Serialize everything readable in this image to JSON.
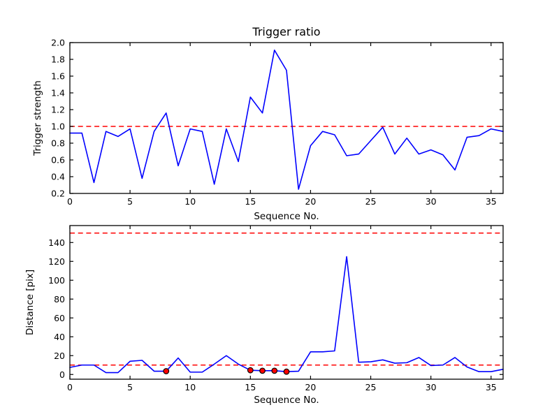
{
  "figure": {
    "background": "#ffffff",
    "frame_color": "#000000"
  },
  "chart_data": [
    {
      "type": "line",
      "title": "Trigger ratio",
      "xlabel": "Sequence No.",
      "ylabel": "Trigger strength",
      "grid": false,
      "legend": null,
      "xlim": [
        0,
        36
      ],
      "ylim": [
        0.2,
        2.0
      ],
      "xticks": [
        0,
        5,
        10,
        15,
        20,
        25,
        30,
        35
      ],
      "xtick_labels": [
        "0",
        "5",
        "10",
        "15",
        "20",
        "25",
        "30",
        "35"
      ],
      "yticks": [
        0.2,
        0.4,
        0.6,
        0.8,
        1.0,
        1.2,
        1.4,
        1.6,
        1.8,
        2.0
      ],
      "ytick_labels": [
        "0.2",
        "0.4",
        "0.6",
        "0.8",
        "1.0",
        "1.2",
        "1.4",
        "1.6",
        "1.8",
        "2.0"
      ],
      "x": [
        0,
        1,
        2,
        3,
        4,
        5,
        6,
        7,
        8,
        9,
        10,
        11,
        12,
        13,
        14,
        15,
        16,
        17,
        18,
        19,
        20,
        21,
        22,
        23,
        24,
        25,
        26,
        27,
        28,
        29,
        30,
        31,
        32,
        33,
        34,
        35,
        36
      ],
      "series": [
        {
          "name": "trigger_strength",
          "color": "#0000ff",
          "values": [
            0.92,
            0.92,
            0.33,
            0.94,
            0.88,
            0.97,
            0.38,
            0.94,
            1.16,
            0.53,
            0.97,
            0.94,
            0.31,
            0.97,
            0.58,
            1.35,
            1.16,
            1.91,
            1.67,
            0.25,
            0.77,
            0.94,
            0.9,
            0.65,
            0.67,
            0.83,
            0.99,
            0.67,
            0.86,
            0.67,
            0.72,
            0.66,
            0.48,
            0.87,
            0.89,
            0.97,
            0.94
          ]
        }
      ],
      "thresholds": [
        {
          "value": 1.0,
          "color": "#ff0000",
          "style": "dashed"
        }
      ]
    },
    {
      "type": "line",
      "title": "",
      "xlabel": "Sequence No.",
      "ylabel": "Distance [pix]",
      "grid": false,
      "legend": null,
      "xlim": [
        0,
        36
      ],
      "ylim": [
        -5,
        158
      ],
      "xticks": [
        0,
        5,
        10,
        15,
        20,
        25,
        30,
        35
      ],
      "xtick_labels": [
        "0",
        "5",
        "10",
        "15",
        "20",
        "25",
        "30",
        "35"
      ],
      "yticks": [
        0,
        20,
        40,
        60,
        80,
        100,
        120,
        140
      ],
      "ytick_labels": [
        "0",
        "20",
        "40",
        "60",
        "80",
        "100",
        "120",
        "140"
      ],
      "x": [
        0,
        1,
        2,
        3,
        4,
        5,
        6,
        7,
        8,
        9,
        10,
        11,
        12,
        13,
        14,
        15,
        16,
        17,
        18,
        19,
        20,
        21,
        22,
        23,
        24,
        25,
        26,
        27,
        28,
        29,
        30,
        31,
        32,
        33,
        34,
        35,
        36
      ],
      "series": [
        {
          "name": "distance",
          "color": "#0000ff",
          "values": [
            7.5,
            10,
            10,
            2,
            2,
            14,
            15,
            3.5,
            3.5,
            17.5,
            2.5,
            2.5,
            11,
            20,
            11,
            4.5,
            4,
            4,
            3,
            3.5,
            24,
            24,
            25,
            125,
            13,
            13.5,
            15.5,
            12,
            12.5,
            18,
            9.5,
            10,
            18,
            8,
            3,
            3,
            5.5
          ]
        }
      ],
      "markers": {
        "shape": "circle",
        "color": "#ff0000",
        "edge": "#000000",
        "x": [
          8,
          15,
          16,
          17,
          18
        ],
        "values": [
          3.5,
          4.5,
          4,
          4,
          3
        ]
      },
      "thresholds": [
        {
          "value": 150,
          "color": "#ff0000",
          "style": "dashed"
        },
        {
          "value": 10,
          "color": "#ff0000",
          "style": "dashed"
        }
      ]
    }
  ]
}
